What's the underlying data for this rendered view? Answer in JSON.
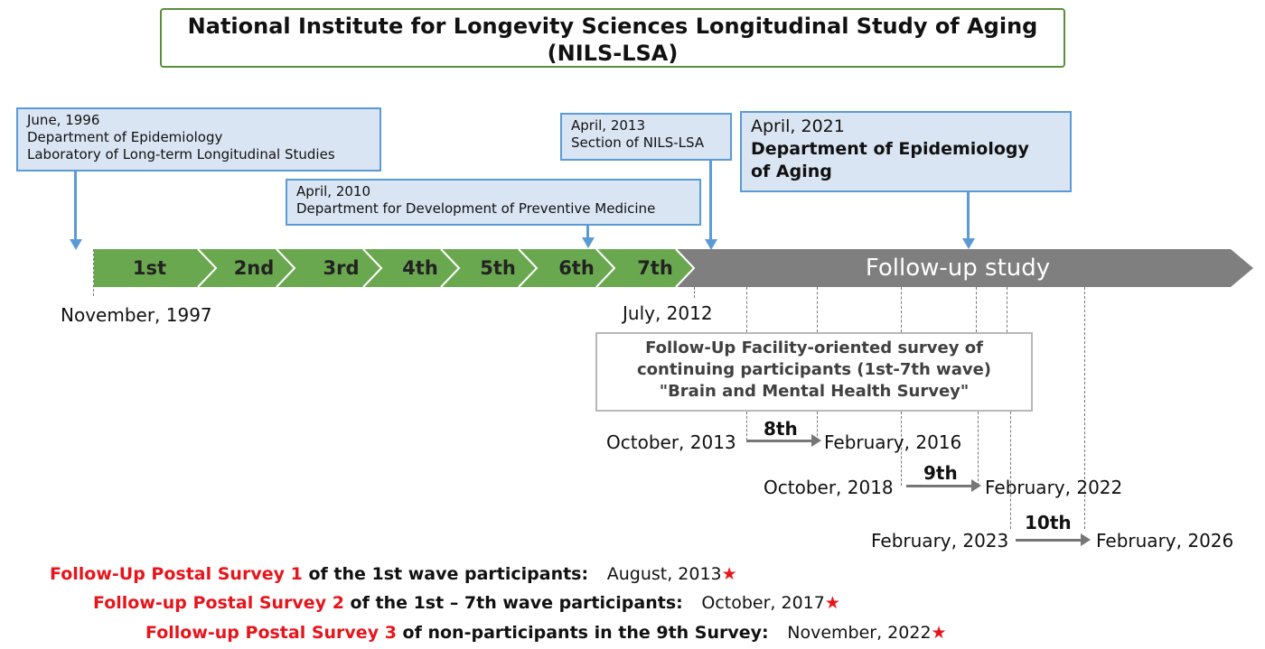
{
  "title": {
    "line1": "National Institute for Longevity Sciences  Longitudinal Study of Aging",
    "line2": "(NILS-LSA)"
  },
  "events": [
    {
      "date": "June, 1996",
      "lines": [
        "Department of Epidemiology",
        "Laboratory of Long-term Longitudinal Studies"
      ]
    },
    {
      "date": "April, 2010",
      "lines": [
        "Department for Development of Preventive Medicine"
      ]
    },
    {
      "date": "April, 2013",
      "lines": [
        "Section of NILS-LSA"
      ]
    },
    {
      "date": "April, 2021",
      "lines": [
        "Department of Epidemiology",
        "of Aging"
      ]
    }
  ],
  "waves": [
    "1st",
    "2nd",
    "3rd",
    "4th",
    "5th",
    "6th",
    "7th"
  ],
  "followup_band": "Follow-up study",
  "timeline_dates": {
    "start": "November, 1997",
    "end_waves": "July, 2012"
  },
  "followup_box": {
    "lines": [
      "Follow-Up Facility-oriented survey of",
      "continuing participants (1st-7th wave)",
      "\"Brain and Mental Health Survey\""
    ]
  },
  "followup_waves": [
    {
      "wave": "8th",
      "start": "October, 2013",
      "end": "February, 2016"
    },
    {
      "wave": "9th",
      "start": "October, 2018",
      "end": "February, 2022"
    },
    {
      "wave": "10th",
      "start": "February, 2023",
      "end": "February, 2026"
    }
  ],
  "postal_surveys": [
    {
      "name": "Follow-Up Postal Survey 1",
      "desc": "of the 1st wave participants:",
      "date": "August, 2013",
      "star": "★"
    },
    {
      "name": "Follow-up Postal Survey 2",
      "desc": "of the 1st – 7th wave participants:",
      "date": "October, 2017",
      "star": "★"
    },
    {
      "name": "Follow-up Postal Survey 3",
      "desc": "of non-participants in the 9th Survey:",
      "date": "November, 2022",
      "star": "★"
    }
  ],
  "colors": {
    "title_border": "#5a8f3a",
    "event_fill": "#dae5f3",
    "event_border": "#5b9bd5",
    "wave_green": "#6aa84f",
    "followup_gray": "#7f7f7f",
    "highlight_red": "#e8141b"
  }
}
